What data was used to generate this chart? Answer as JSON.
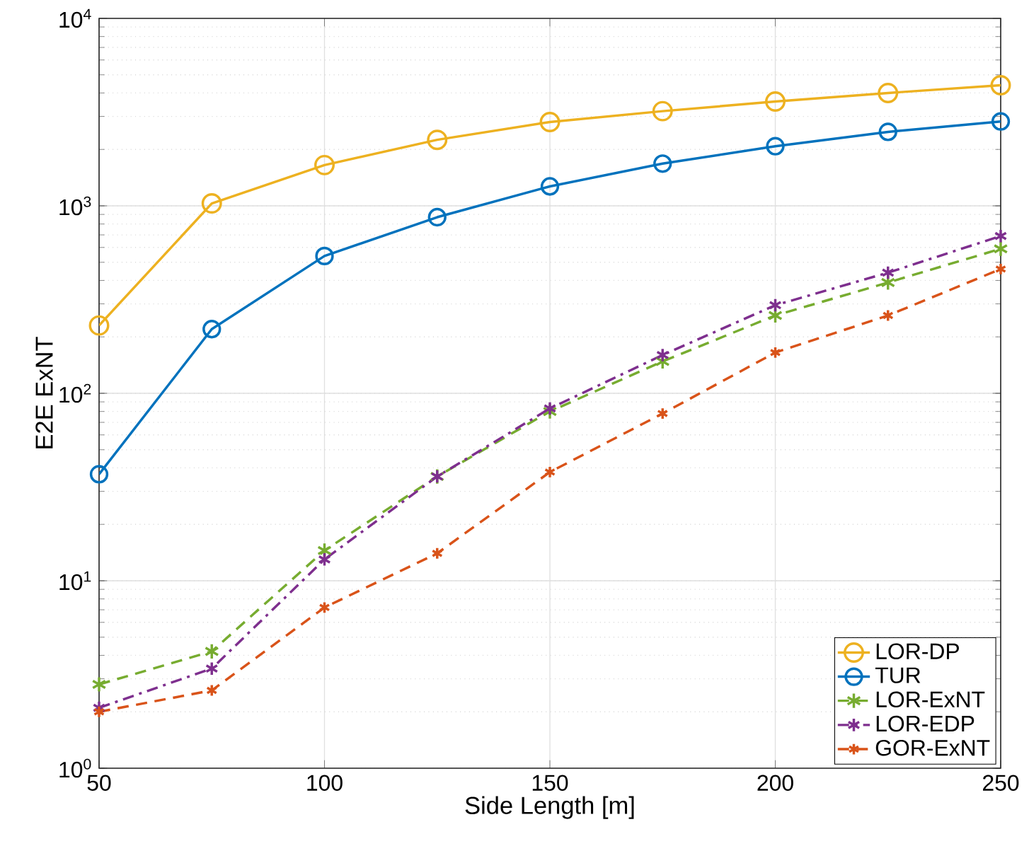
{
  "chart_data": {
    "type": "line",
    "xlabel": "Side Length [m]",
    "ylabel": "E2E ExNT",
    "x": [
      50,
      75,
      100,
      125,
      150,
      175,
      200,
      225,
      250
    ],
    "series": [
      {
        "name": "LOR-DP",
        "color": "#edb120",
        "marker": "circle",
        "line_style": "solid",
        "values": [
          230,
          1030,
          1650,
          2250,
          2800,
          3200,
          3600,
          4000,
          4400
        ]
      },
      {
        "name": "TUR",
        "color": "#0072bd",
        "marker": "circle",
        "line_style": "solid",
        "values": [
          37,
          220,
          540,
          870,
          1270,
          1680,
          2080,
          2480,
          2820
        ]
      },
      {
        "name": "LOR-ExNT",
        "color": "#77ac30",
        "marker": "cross",
        "line_style": "dashed",
        "values": [
          2.8,
          4.2,
          14.5,
          36,
          80,
          148,
          260,
          390,
          590
        ]
      },
      {
        "name": "LOR-EDP",
        "color": "#7e2f8e",
        "marker": "cross",
        "line_style": "dashdot",
        "values": [
          2.1,
          3.4,
          13,
          36,
          83,
          160,
          295,
          440,
          690
        ]
      },
      {
        "name": "GOR-ExNT",
        "color": "#d95319",
        "marker": "cross",
        "line_style": "dashed",
        "values": [
          2.0,
          2.6,
          7.2,
          14,
          38,
          78,
          165,
          260,
          460
        ]
      }
    ],
    "log": "y",
    "xlim": [
      50,
      250
    ],
    "ylim": [
      1,
      10000
    ],
    "xticks": [
      50,
      100,
      150,
      200,
      250
    ],
    "yticks": [
      {
        "value": 1,
        "label": "10$^{0}$"
      },
      {
        "value": 10,
        "label": "10$^{1}$"
      },
      {
        "value": 100,
        "label": "10$^{2}$"
      },
      {
        "value": 1000,
        "label": "10$^{3}$"
      },
      {
        "value": 10000,
        "label": "10$^{4}$"
      }
    ],
    "grid": true,
    "legend": "bottom right"
  }
}
